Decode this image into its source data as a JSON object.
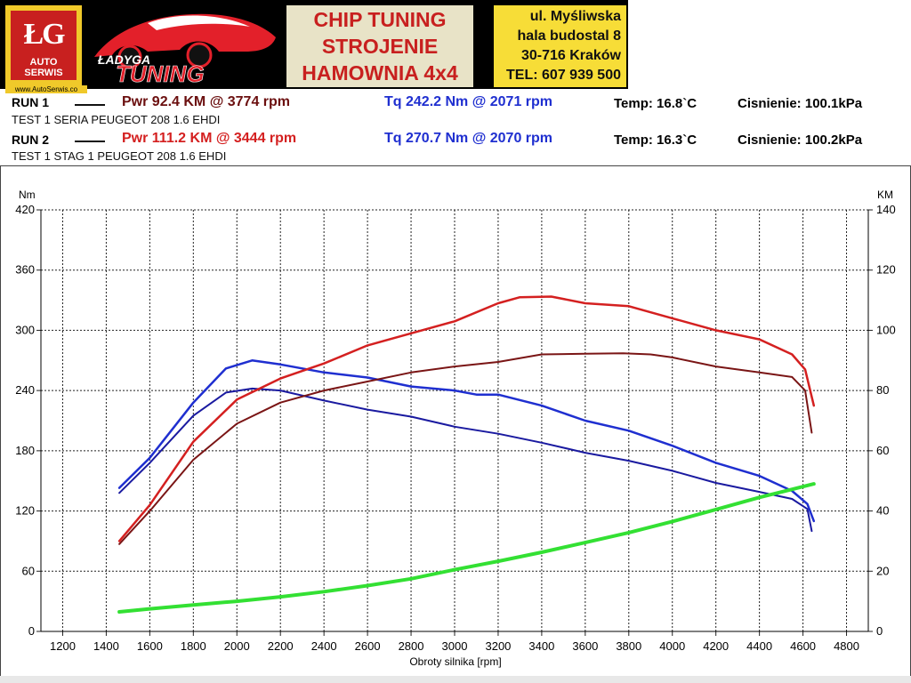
{
  "banner": {
    "logo_mark": "ŁG",
    "logo_name": "AUTO SERWIS",
    "logo_url": "www.AutoSerwis.co",
    "car_logo_top": "ŁADYGA",
    "car_logo_bottom": "TUNING",
    "headline": [
      "CHIP TUNING",
      "STROJENIE",
      "HAMOWNIA 4x4"
    ],
    "address": [
      "ul. Myśliwska",
      "hala budostal 8",
      "30-716 Kraków",
      "TEL: 607 939 500"
    ]
  },
  "runs": [
    {
      "label": "RUN 1",
      "pwr": "Pwr  92.4 KM @ 3774 rpm",
      "tq": "Tq 242.2 Nm @ 2071 rpm",
      "temp": "Temp: 16.8`C",
      "pressure": "Cisnienie: 100.1kPa",
      "description": "TEST 1  SERIA PEUGEOT 208 1.6 EHDI"
    },
    {
      "label": "RUN 2",
      "pwr": "Pwr  111.2 KM @ 3444 rpm",
      "tq": "Tq 270.7 Nm @ 2070 rpm",
      "temp": "Temp: 16.3`C",
      "pressure": "Cisnienie: 100.2kPa",
      "description": "TEST 1  STAG 1 PEUGEOT 208 1.6 EHDI"
    }
  ],
  "colors": {
    "run1_power": "#7a1515",
    "run2_power": "#d42020",
    "run1_torque": "#1a1aa0",
    "run2_torque": "#1f2fd0",
    "loss": "#33e033",
    "run1_text": "#6b0f0f",
    "run2_text": "#d42020",
    "tq_text": "#1f2fd0"
  },
  "chart_data": {
    "type": "line",
    "xlabel": "Obroty silnika [rpm]",
    "ylabel_left": "Nm",
    "ylabel_right": "KM",
    "xlim": [
      1100,
      4900
    ],
    "ylim_left": [
      0,
      420
    ],
    "ylim_right": [
      0,
      140
    ],
    "x_ticks": [
      1200,
      1400,
      1600,
      1800,
      2000,
      2200,
      2400,
      2600,
      2800,
      3000,
      3200,
      3400,
      3600,
      3800,
      4000,
      4200,
      4400,
      4600,
      4800
    ],
    "y_ticks_left": [
      0,
      60,
      120,
      180,
      240,
      300,
      360,
      420
    ],
    "y_ticks_right": [
      0,
      20,
      40,
      60,
      80,
      100,
      120,
      140
    ],
    "grid": true,
    "series": [
      {
        "key": "run1_torque",
        "axis": "left",
        "x": [
          1460,
          1600,
          1800,
          1950,
          2071,
          2200,
          2400,
          2600,
          2800,
          3000,
          3200,
          3400,
          3600,
          3800,
          4000,
          4200,
          4400,
          4550,
          4620,
          4640
        ],
        "y": [
          138,
          168,
          215,
          238,
          242,
          240,
          230,
          221,
          214,
          204,
          197,
          188,
          178,
          170,
          160,
          148,
          139,
          132,
          122,
          100
        ]
      },
      {
        "key": "run2_torque",
        "axis": "left",
        "x": [
          1460,
          1600,
          1800,
          1950,
          2070,
          2200,
          2400,
          2600,
          2800,
          3000,
          3100,
          3200,
          3400,
          3600,
          3800,
          4000,
          4200,
          4400,
          4550,
          4620,
          4650
        ],
        "y": [
          143,
          173,
          228,
          262,
          270,
          266,
          258,
          253,
          244,
          240,
          236,
          236,
          225,
          210,
          200,
          185,
          168,
          155,
          140,
          127,
          110
        ]
      },
      {
        "key": "run1_power",
        "axis": "right",
        "x": [
          1460,
          1600,
          1800,
          2000,
          2200,
          2400,
          2600,
          2800,
          3000,
          3200,
          3400,
          3600,
          3774,
          3900,
          4000,
          4200,
          4400,
          4550,
          4610,
          4640
        ],
        "y": [
          29,
          40,
          57,
          69,
          76,
          80,
          83,
          86,
          88,
          89.5,
          92,
          92.2,
          92.4,
          92,
          91,
          88,
          86,
          84.5,
          80,
          66
        ]
      },
      {
        "key": "run2_power",
        "axis": "right",
        "x": [
          1460,
          1600,
          1800,
          2000,
          2200,
          2400,
          2600,
          2800,
          3000,
          3200,
          3300,
          3444,
          3600,
          3800,
          4000,
          4200,
          4400,
          4550,
          4610,
          4650
        ],
        "y": [
          30,
          42,
          63,
          77,
          84,
          89,
          95,
          99,
          103,
          109,
          111,
          111.2,
          109,
          108,
          104,
          100,
          97,
          92,
          87,
          75
        ]
      },
      {
        "key": "loss",
        "axis": "right",
        "x": [
          1460,
          1600,
          1800,
          2000,
          2200,
          2400,
          2600,
          2800,
          3000,
          3200,
          3400,
          3600,
          3800,
          4000,
          4200,
          4400,
          4650
        ],
        "y": [
          6.5,
          7.5,
          8.8,
          10,
          11.5,
          13.2,
          15.2,
          17.5,
          20.5,
          23.3,
          26.3,
          29.5,
          32.8,
          36.5,
          40.5,
          44.5,
          49
        ]
      }
    ]
  }
}
